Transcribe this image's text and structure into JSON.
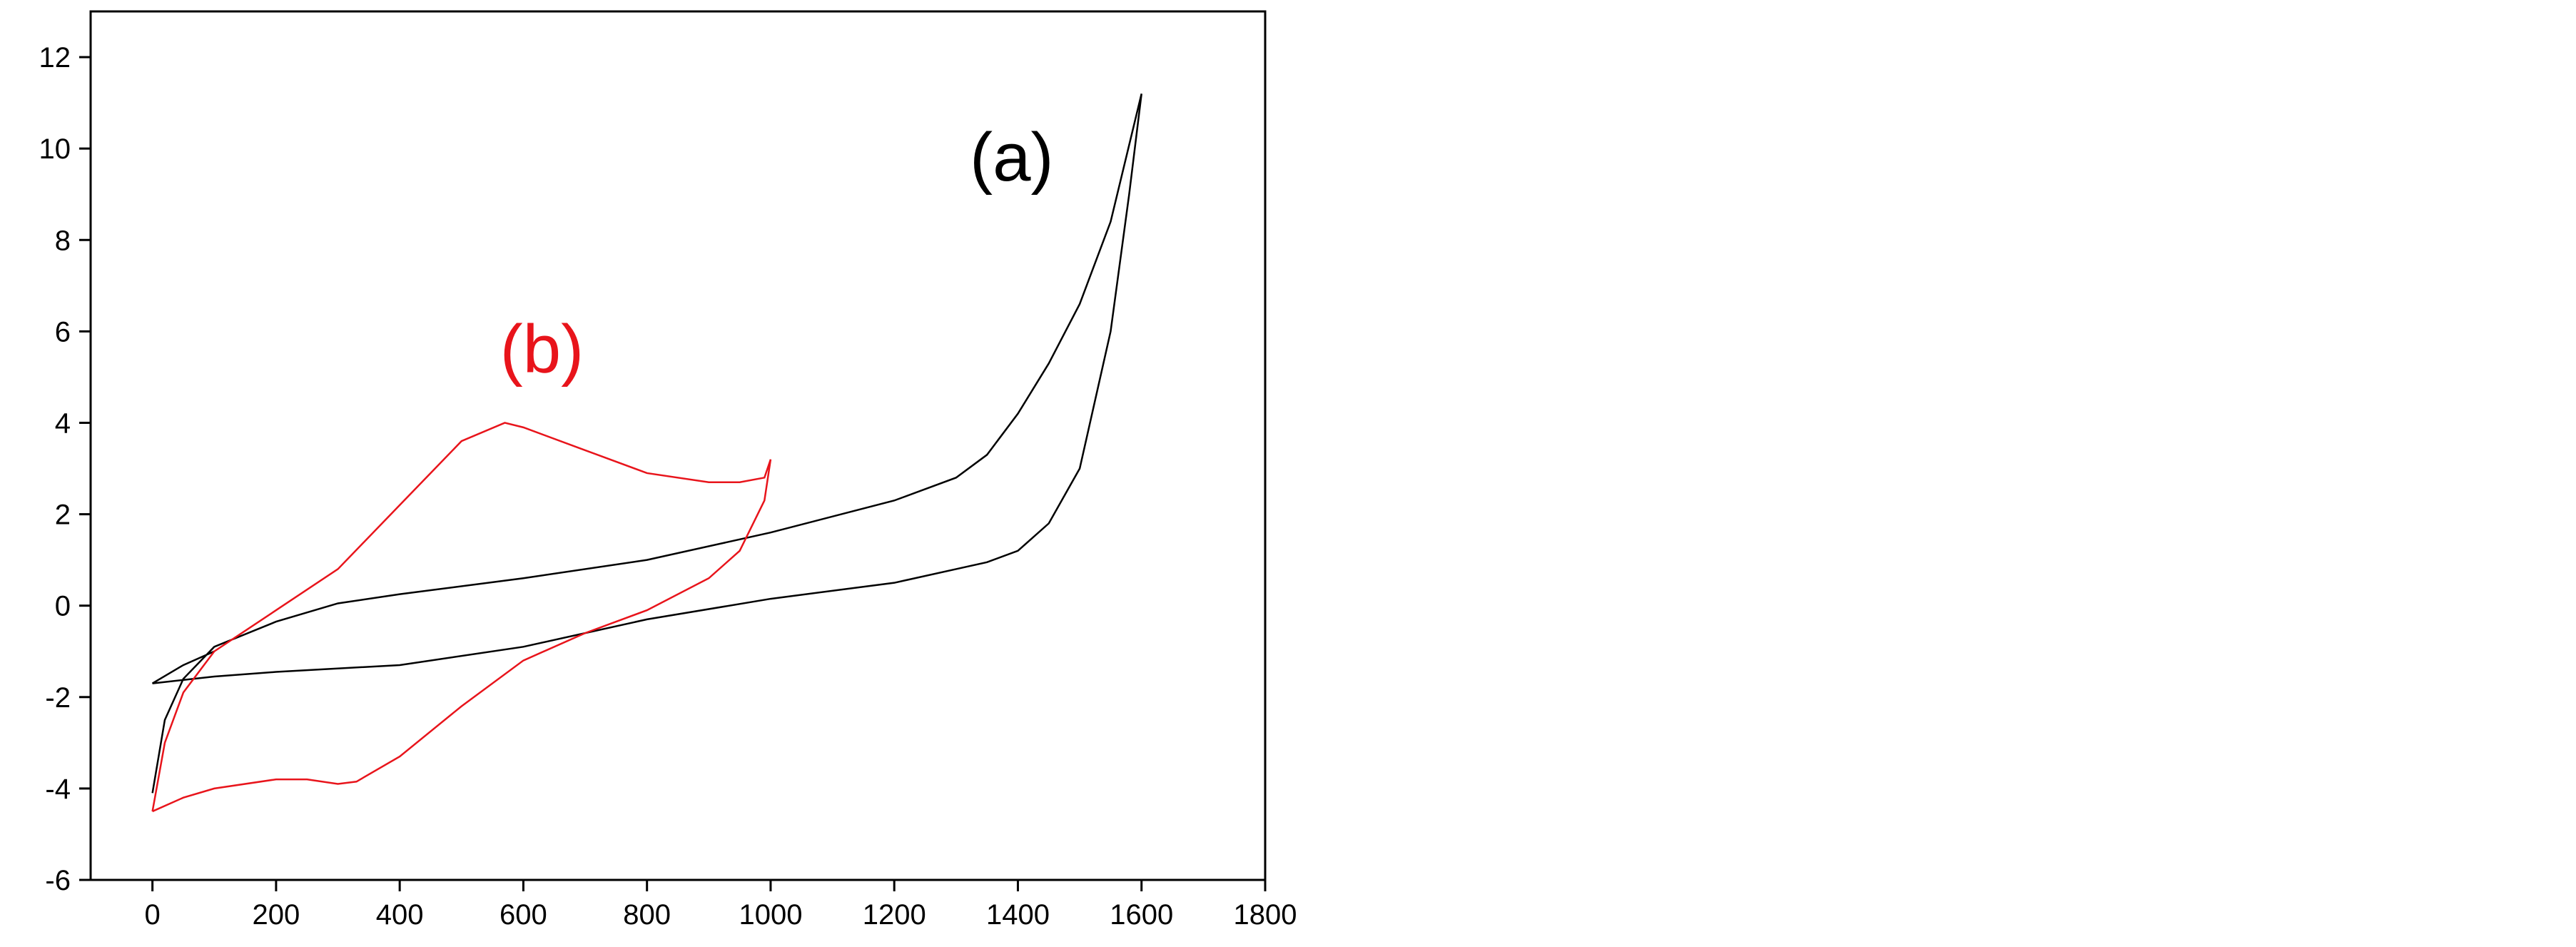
{
  "chart_data": {
    "type": "line",
    "xlim": [
      -100,
      1800
    ],
    "xticks": [
      0,
      200,
      400,
      600,
      800,
      1000,
      1200,
      1400,
      1600,
      1800
    ],
    "ylim": [
      -6,
      13
    ],
    "yticks": [
      -6,
      -4,
      -2,
      0,
      2,
      4,
      6,
      8,
      10,
      12
    ],
    "series": [
      {
        "name": "(a)",
        "color": "#000000",
        "x": [
          0,
          20,
          50,
          100,
          200,
          300,
          400,
          600,
          800,
          1000,
          1200,
          1300,
          1350,
          1400,
          1450,
          1500,
          1550,
          1600,
          1580,
          1550,
          1500,
          1450,
          1400,
          1350,
          1300,
          1200,
          1000,
          800,
          600,
          400,
          200,
          100,
          0,
          50,
          100
        ],
        "values": [
          -4.1,
          -2.5,
          -1.6,
          -0.9,
          -0.35,
          0.05,
          0.25,
          0.6,
          1.0,
          1.6,
          2.3,
          2.8,
          3.3,
          4.2,
          5.3,
          6.6,
          8.4,
          11.2,
          9.0,
          6.0,
          3.0,
          1.8,
          1.2,
          0.95,
          0.8,
          0.5,
          0.15,
          -0.3,
          -0.9,
          -1.3,
          -1.45,
          -1.55,
          -1.7,
          -1.3,
          -1.0
        ]
      },
      {
        "name": "(b)",
        "color": "#e8141b",
        "x": [
          0,
          50,
          100,
          200,
          250,
          300,
          330,
          400,
          500,
          600,
          700,
          800,
          900,
          950,
          990,
          1000,
          990,
          950,
          900,
          800,
          700,
          600,
          570,
          500,
          400,
          300,
          200,
          100,
          50,
          20,
          0
        ],
        "values": [
          -4.5,
          -4.2,
          -4.0,
          -3.8,
          -3.8,
          -3.9,
          -3.85,
          -3.3,
          -2.2,
          -1.2,
          -0.6,
          -0.1,
          0.6,
          1.2,
          2.3,
          3.2,
          2.8,
          2.7,
          2.7,
          2.9,
          3.4,
          3.9,
          4.0,
          3.6,
          2.2,
          0.8,
          -0.1,
          -1.0,
          -1.9,
          -3.0,
          -4.5
        ]
      }
    ]
  }
}
